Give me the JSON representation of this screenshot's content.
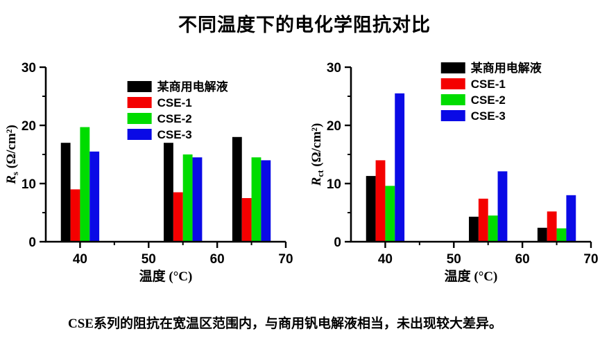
{
  "title": "不同温度下的电化学阻抗对比",
  "caption": "CSE系列的阻抗在宽温区范围内，与商用钒电解液相当，未出现较大差异。",
  "colors": {
    "commercial": "#000000",
    "cse1": "#F40000",
    "cse2": "#00DC00",
    "cse3": "#0A0AE6"
  },
  "chart_data": [
    {
      "type": "bar",
      "title": "",
      "ylabel": {
        "symbol": "R",
        "subscript": "s",
        "unit": "(Ω/cm²)"
      },
      "xlabel": "温度 (°C)",
      "x": [
        40,
        55,
        65
      ],
      "xticks": [
        40,
        50,
        60,
        70
      ],
      "xlim": [
        35,
        70
      ],
      "yticks": [
        0,
        10,
        20,
        30
      ],
      "ylim": [
        0,
        30
      ],
      "grid": false,
      "legend_position": "inside-top-center",
      "series": [
        {
          "name": "某商用电解液",
          "color": "#000000",
          "values": [
            17.0,
            17.0,
            18.0
          ]
        },
        {
          "name": "CSE-1",
          "color": "#F40000",
          "values": [
            9.0,
            8.5,
            7.5
          ]
        },
        {
          "name": "CSE-2",
          "color": "#00DC00",
          "values": [
            19.7,
            15.0,
            14.5
          ]
        },
        {
          "name": "CSE-3",
          "color": "#0A0AE6",
          "values": [
            15.5,
            14.5,
            14.0
          ]
        }
      ]
    },
    {
      "type": "bar",
      "title": "",
      "ylabel": {
        "symbol": "R",
        "subscript": "ct",
        "unit": "(Ω/cm²)"
      },
      "xlabel": "温度 (°C)",
      "x": [
        40,
        55,
        65
      ],
      "xticks": [
        40,
        50,
        60,
        70
      ],
      "xlim": [
        35,
        70
      ],
      "yticks": [
        0,
        10,
        20,
        30
      ],
      "ylim": [
        0,
        30
      ],
      "grid": false,
      "legend_position": "inside-top-center",
      "series": [
        {
          "name": "某商用电解液",
          "color": "#000000",
          "values": [
            11.3,
            4.3,
            2.4
          ]
        },
        {
          "name": "CSE-1",
          "color": "#F40000",
          "values": [
            14.0,
            7.4,
            5.2
          ]
        },
        {
          "name": "CSE-2",
          "color": "#00DC00",
          "values": [
            9.6,
            4.5,
            2.3
          ]
        },
        {
          "name": "CSE-3",
          "color": "#0A0AE6",
          "values": [
            25.5,
            12.1,
            8.0
          ]
        }
      ]
    }
  ]
}
